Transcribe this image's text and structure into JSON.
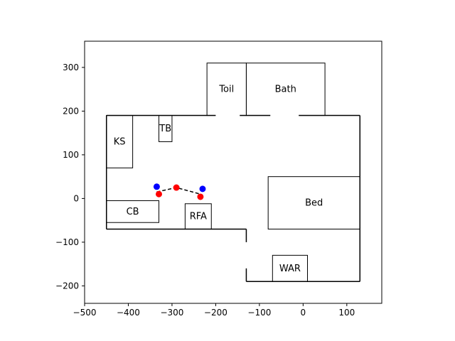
{
  "chart_data": {
    "type": "floorplan",
    "xlim": [
      -500,
      180
    ],
    "ylim": [
      -240,
      360
    ],
    "x_ticks": [
      -500,
      -400,
      -300,
      -200,
      -100,
      0,
      100
    ],
    "y_ticks": [
      -200,
      -100,
      0,
      100,
      200,
      300
    ],
    "walls": [
      [
        [
          -450,
          -70
        ],
        [
          -450,
          190
        ]
      ],
      [
        [
          -450,
          190
        ],
        [
          130,
          190
        ]
      ],
      [
        [
          130,
          190
        ],
        [
          130,
          -190
        ]
      ],
      [
        [
          130,
          -190
        ],
        [
          -130,
          -190
        ]
      ],
      [
        [
          -130,
          -190
        ],
        [
          -130,
          -160
        ]
      ],
      [
        [
          -130,
          -100
        ],
        [
          -130,
          -70
        ]
      ],
      [
        [
          -130,
          -70
        ],
        [
          -450,
          -70
        ]
      ]
    ],
    "rooms": [
      {
        "label": "Toil",
        "x1": -220,
        "y1": 190,
        "x2": -130,
        "y2": 310,
        "gap": [
          -200,
          -145
        ]
      },
      {
        "label": "Bath",
        "x1": -130,
        "y1": 190,
        "x2": 50,
        "y2": 310,
        "gap": [
          -75,
          -10
        ]
      },
      {
        "label": "KS",
        "x1": -450,
        "y1": 70,
        "x2": -390,
        "y2": 190,
        "gap": null
      },
      {
        "label": "TB",
        "x1": -330,
        "y1": 130,
        "x2": -300,
        "y2": 190,
        "gap": null
      },
      {
        "label": "CB",
        "x1": -450,
        "y1": -55,
        "x2": -330,
        "y2": -5,
        "gap": null
      },
      {
        "label": "RFA",
        "x1": -270,
        "y1": -70,
        "x2": -210,
        "y2": -12,
        "gap": null
      },
      {
        "label": "Bed",
        "x1": -80,
        "y1": -70,
        "x2": 130,
        "y2": 50,
        "gap": null
      },
      {
        "label": "WAR",
        "x1": -70,
        "y1": -190,
        "x2": 10,
        "y2": -130,
        "gap": null
      }
    ],
    "path": [
      [
        -335,
        15
      ],
      [
        -290,
        25
      ],
      [
        -235,
        10
      ]
    ],
    "blue_points": [
      [
        -335,
        27
      ],
      [
        -230,
        22
      ]
    ],
    "red_points": [
      [
        -330,
        10
      ],
      [
        -290,
        25
      ],
      [
        -235,
        4
      ]
    ],
    "colors": {
      "blue": "#0000ff",
      "red": "#ff0000",
      "line": "#000000"
    }
  }
}
